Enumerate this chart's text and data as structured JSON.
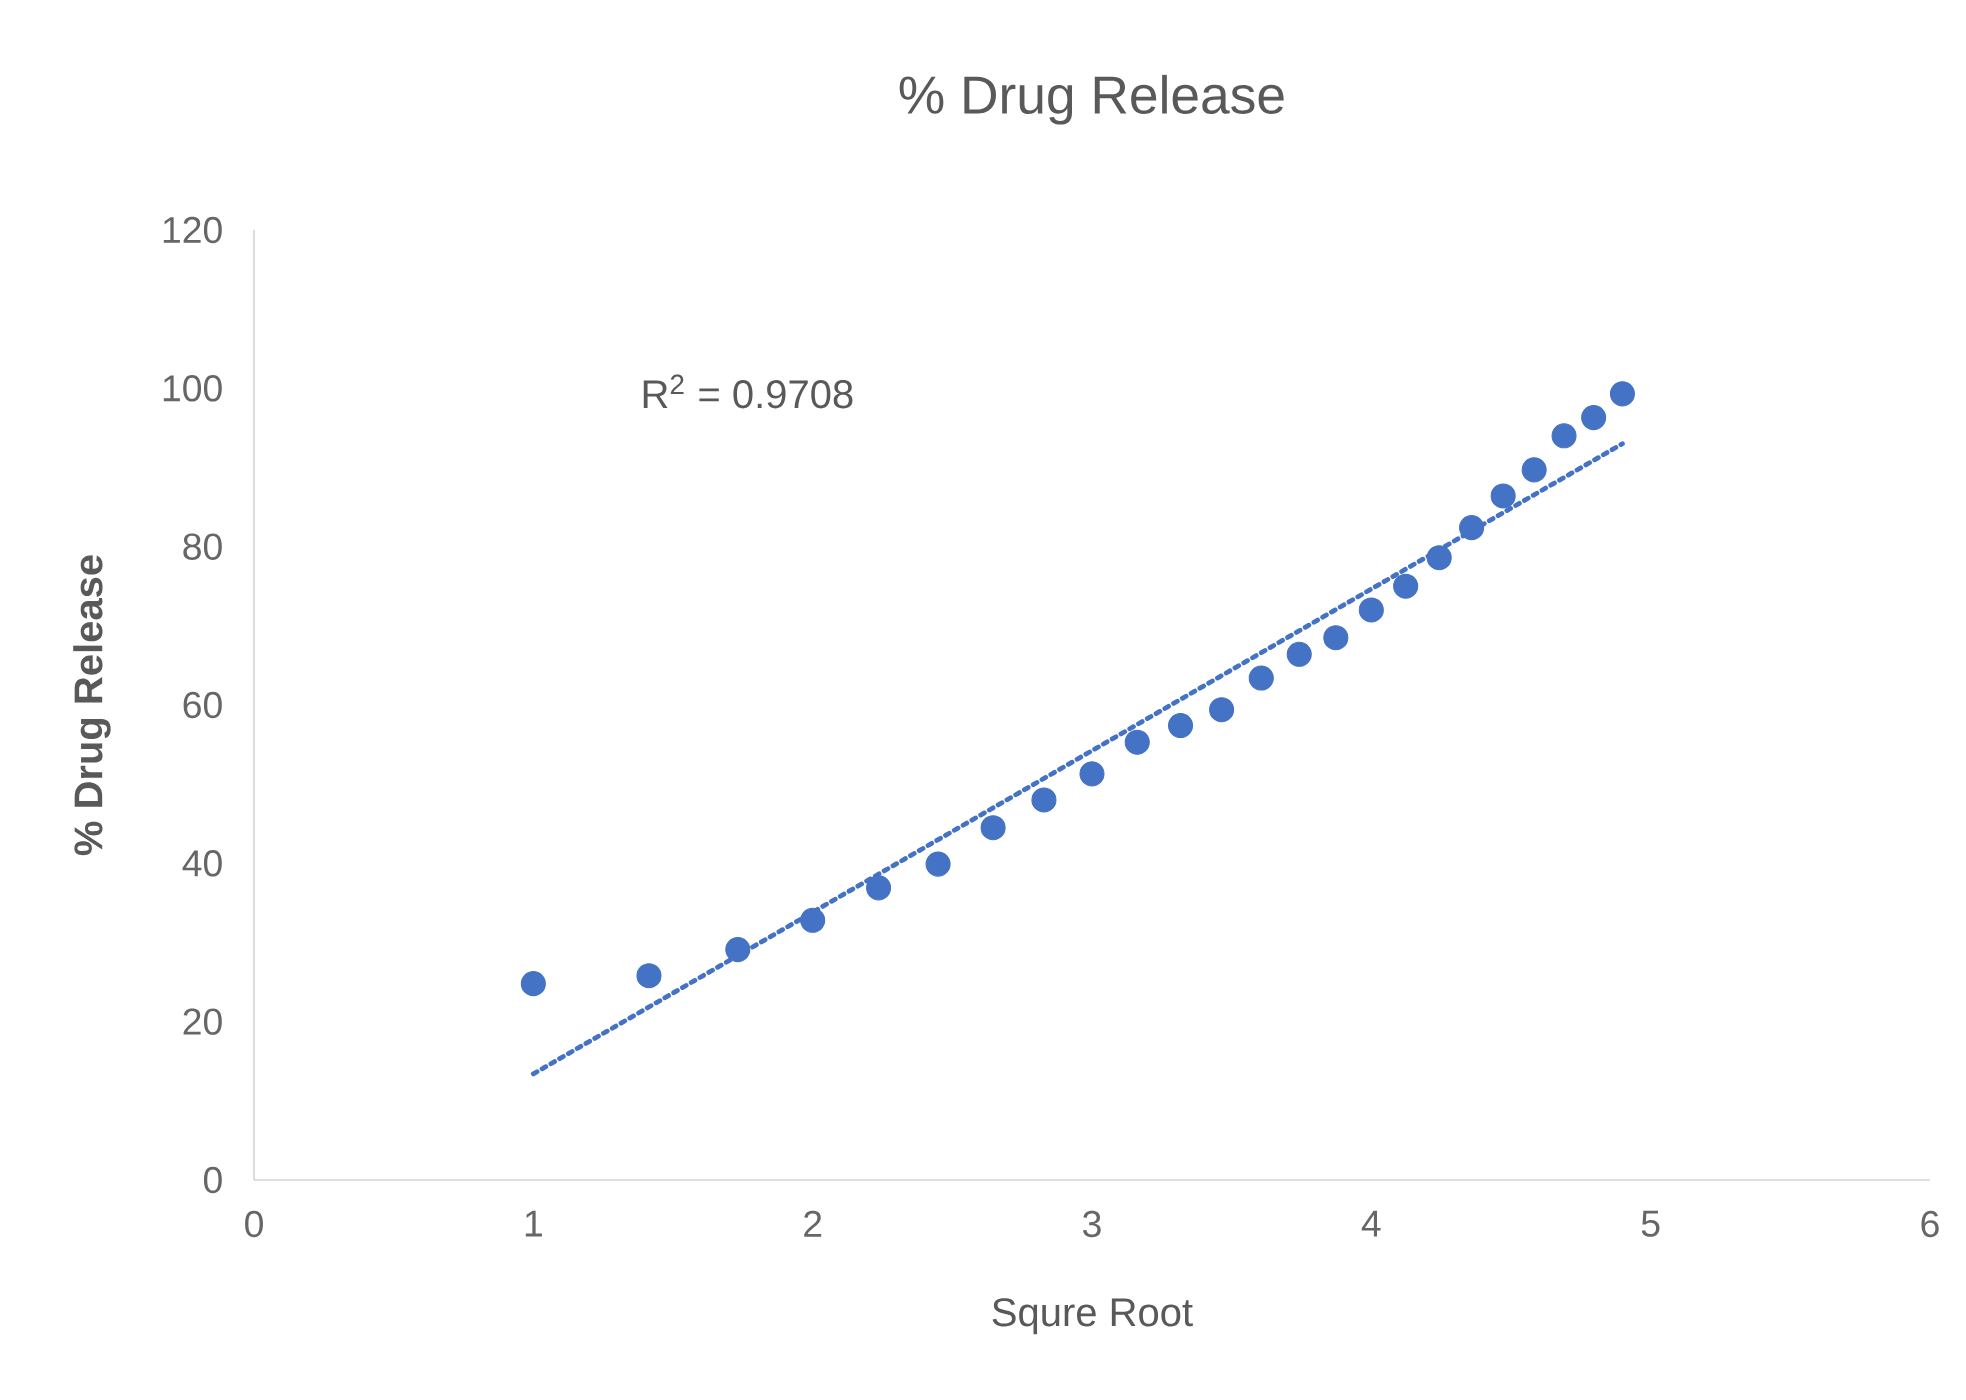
{
  "chart_data": {
    "type": "scatter",
    "title": "% Drug Release",
    "xlabel": "Squre Root",
    "ylabel": "% Drug Release",
    "annotations": [
      "R$^{2}$ = 0.9708"
    ],
    "xlim": [
      0,
      6
    ],
    "xticks": [
      0,
      1,
      2,
      3,
      4,
      5,
      6
    ],
    "ylim": [
      0,
      120
    ],
    "yticks": [
      0,
      20,
      40,
      60,
      80,
      100,
      120
    ],
    "grid": false,
    "marker": "circle",
    "series": [
      {
        "color": "#4472c4",
        "x": [
          1,
          1.414,
          1.732,
          2,
          2.236,
          2.449,
          2.646,
          2.828,
          3,
          3.162,
          3.317,
          3.464,
          3.606,
          3.742,
          3.873,
          4,
          4.123,
          4.243,
          4.359,
          4.472,
          4.583,
          4.69,
          4.796,
          4.899
        ],
        "values": [
          24.8,
          25.8,
          29.1,
          32.8,
          36.9,
          39.9,
          44.5,
          48,
          51.3,
          55.3,
          57.4,
          59.4,
          63.4,
          66.4,
          68.5,
          72,
          75,
          78.6,
          82.4,
          86.4,
          89.7,
          94,
          96.3,
          99.3
        ]
      },
      {
        "type": "line",
        "color": "#4472c4",
        "line_style": "dotted",
        "marker": "none",
        "x": [
          1,
          4.899
        ],
        "values": [
          13.4,
          93
        ]
      }
    ]
  }
}
